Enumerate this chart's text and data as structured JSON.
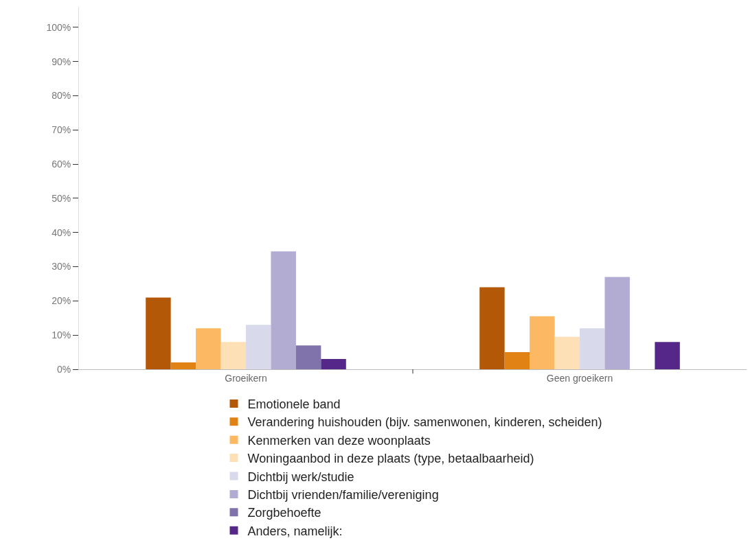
{
  "chart_data": {
    "type": "bar",
    "categories": [
      "Groeikern",
      "Geen groeikern"
    ],
    "series": [
      {
        "name": "Emotionele band",
        "color": "#b35806",
        "values": [
          21,
          24
        ]
      },
      {
        "name": "Verandering huishouden (bijv. samenwonen, kinderen, scheiden)",
        "color": "#e08214",
        "values": [
          2,
          5
        ]
      },
      {
        "name": "Kenmerken van deze woonplaats",
        "color": "#fdb863",
        "values": [
          12,
          15.5
        ]
      },
      {
        "name": "Woningaanbod in deze plaats (type, betaalbaarheid)",
        "color": "#fee0b6",
        "values": [
          8,
          9.5
        ]
      },
      {
        "name": "Dichtbij werk/studie",
        "color": "#d8daeb",
        "values": [
          13,
          12
        ]
      },
      {
        "name": "Dichtbij vrienden/familie/vereniging",
        "color": "#b2abd2",
        "values": [
          34.5,
          27
        ]
      },
      {
        "name": "Zorgbehoefte",
        "color": "#8073ac",
        "values": [
          7,
          0
        ]
      },
      {
        "name": "Anders, namelijk:",
        "color": "#542788",
        "values": [
          3,
          8
        ]
      }
    ],
    "ylim": [
      0,
      106
    ],
    "yticks": [
      {
        "value": 0,
        "label": "0%"
      },
      {
        "value": 10,
        "label": "10%"
      },
      {
        "value": 20,
        "label": "20%"
      },
      {
        "value": 30,
        "label": "30%"
      },
      {
        "value": 40,
        "label": "40%"
      },
      {
        "value": 50,
        "label": "50%"
      },
      {
        "value": 60,
        "label": "60%"
      },
      {
        "value": 70,
        "label": "70%"
      },
      {
        "value": 80,
        "label": "80%"
      },
      {
        "value": 90,
        "label": "90%"
      },
      {
        "value": 100,
        "label": "100%"
      }
    ],
    "grid": false,
    "legend": "bottom"
  }
}
